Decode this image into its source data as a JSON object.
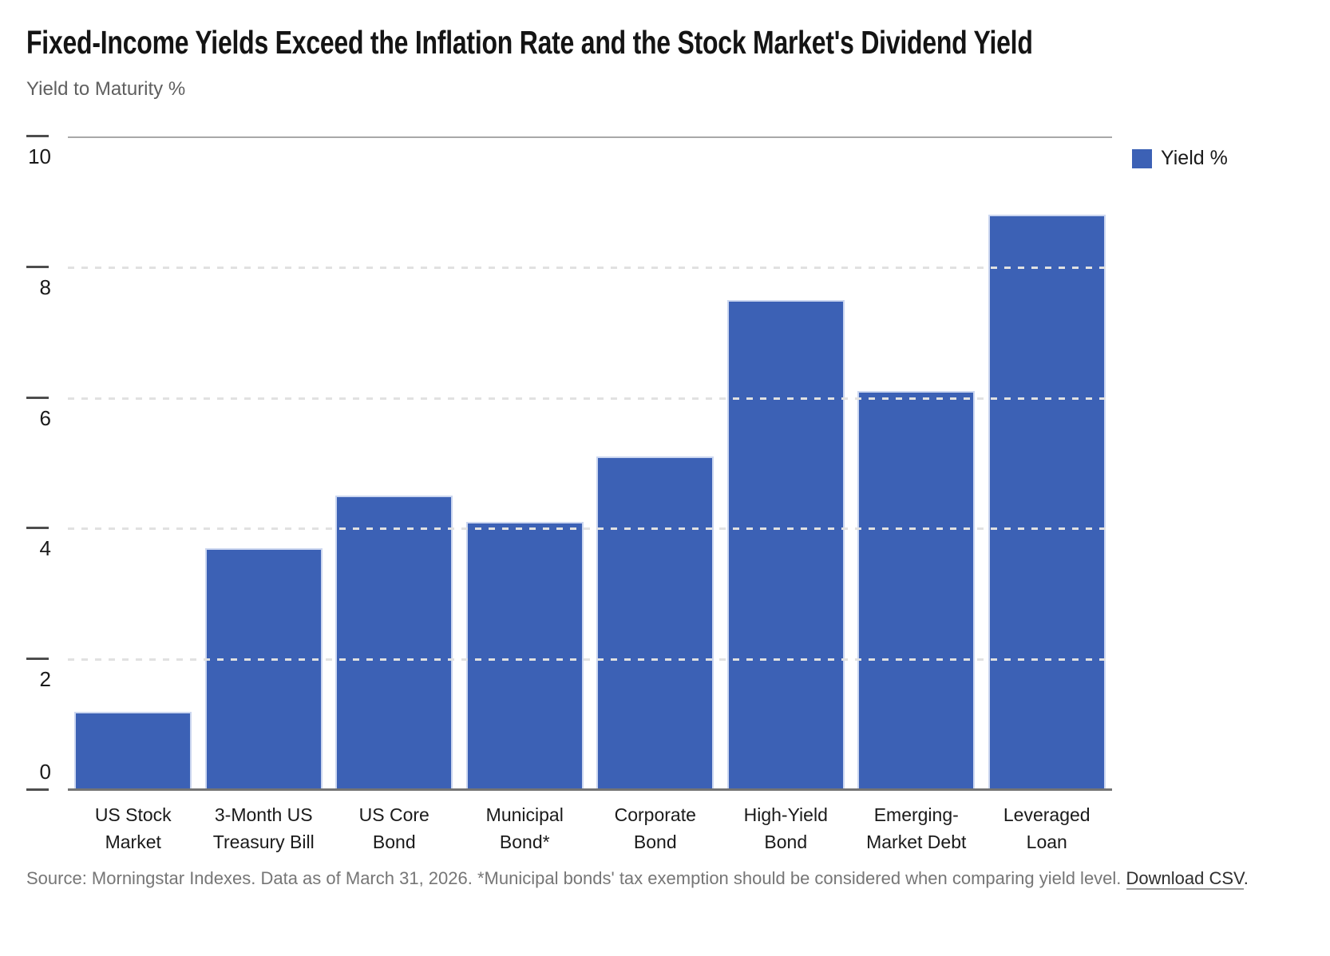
{
  "header": {
    "title": "Fixed-Income Yields Exceed the Inflation Rate and the Stock Market's Dividend Yield",
    "subtitle": "Yield to Maturity %"
  },
  "legend": {
    "label": "Yield %",
    "swatch_color": "#3c61b5",
    "position": "top-right"
  },
  "chart_data": {
    "type": "bar",
    "title": "Fixed-Income Yields Exceed the Inflation Rate and the Stock Market's Dividend Yield",
    "subtitle": "Yield to Maturity %",
    "ylabel": "Yield to Maturity %",
    "xlabel": "",
    "categories": [
      "US Stock Market",
      "3-Month US Treasury Bill",
      "US Core Bond",
      "Municipal Bond*",
      "Corporate Bond",
      "High-Yield Bond",
      "Emerging-Market Debt",
      "Leveraged Loan"
    ],
    "category_display": [
      "US Stock\nMarket",
      "3-Month US\nTreasury Bill",
      "US Core\nBond",
      "Municipal\nBond*",
      "Corporate\nBond",
      "High-Yield\nBond",
      "Emerging-\nMarket Debt",
      "Leveraged\nLoan"
    ],
    "series": [
      {
        "name": "Yield %",
        "values": [
          1.2,
          3.7,
          4.5,
          4.1,
          5.1,
          7.5,
          6.1,
          8.8
        ]
      }
    ],
    "values": [
      1.2,
      3.7,
      4.5,
      4.1,
      5.1,
      7.5,
      6.1,
      8.8
    ],
    "ylim": [
      0,
      10
    ],
    "yticks": [
      0,
      2,
      4,
      6,
      8,
      10
    ],
    "bar_color": "#3c61b5",
    "grid": "horizontal dashed gridlines at 2,4,6,8; solid line at 10 and 0",
    "legend_position": "top-right"
  },
  "footer": {
    "source_text": "Source: Morningstar Indexes. Data as of March 31, 2026. *Municipal bonds' tax exemption should be considered when comparing yield level. ",
    "download_link": "Download CSV",
    "after_link": "."
  }
}
